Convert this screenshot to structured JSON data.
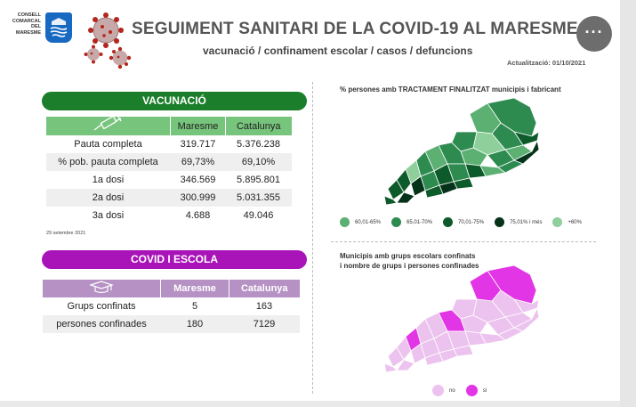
{
  "logo": {
    "text_lines": [
      "CONSELL",
      "COMARCAL",
      "DEL",
      "MARESME"
    ]
  },
  "header": {
    "title": "SEGUIMENT SANITARI DE LA COVID-19 AL MARESME",
    "subtitle": "vacunació / confinament escolar / casos / defuncions",
    "update": "Actualització: 01/10/2021",
    "more_label": "···"
  },
  "vaccination": {
    "pill": "VACUNACIÓ",
    "columns": [
      "Maresme",
      "Catalunya"
    ],
    "rows": [
      {
        "label": "Pauta completa",
        "maresme": "319.717",
        "catalunya": "5.376.238"
      },
      {
        "label": "% pob. pauta completa",
        "maresme": "69,73%",
        "catalunya": "69,10%"
      },
      {
        "label": "1a dosi",
        "maresme": "346.569",
        "catalunya": "5.895.801"
      },
      {
        "label": "2a dosi",
        "maresme": "300.999",
        "catalunya": "5.031.355"
      },
      {
        "label": "3a dosi",
        "maresme": "4.688",
        "catalunya": "49.046"
      }
    ],
    "footnote": "29 setembre 2021"
  },
  "school": {
    "pill": "COVID I ESCOLA",
    "columns": [
      "Maresme",
      "Catalunya"
    ],
    "rows": [
      {
        "label": "Grups confinats",
        "maresme": "5",
        "catalunya": "163"
      },
      {
        "label": "persones confinades",
        "maresme": "180",
        "catalunya": "7129"
      }
    ]
  },
  "map_vaccination": {
    "title": "% persones amb TRACTAMENT FINALITZAT municipis i  fabricant",
    "legend": [
      {
        "label": "60,01-65%",
        "color": "#5bb072"
      },
      {
        "label": "65,01-70%",
        "color": "#2e8b50"
      },
      {
        "label": "70,01-75%",
        "color": "#0d5a2a"
      },
      {
        "label": "75,01% i més",
        "color": "#04331a"
      },
      {
        "label": "+60%",
        "color": "#8fcf9c"
      }
    ]
  },
  "map_school": {
    "title_line1": "Municipis amb grups escolars confinats",
    "title_line2": "i nombre de grups i persones confinades",
    "legend": [
      {
        "label": "no",
        "color": "#ecc3ee"
      },
      {
        "label": "sí",
        "color": "#e235e6"
      }
    ]
  },
  "colors": {
    "green_pill": "#1b7e2a",
    "purple_pill": "#a814b7",
    "table_green_header": "#77c47c",
    "table_purple_header": "#b591c4"
  }
}
